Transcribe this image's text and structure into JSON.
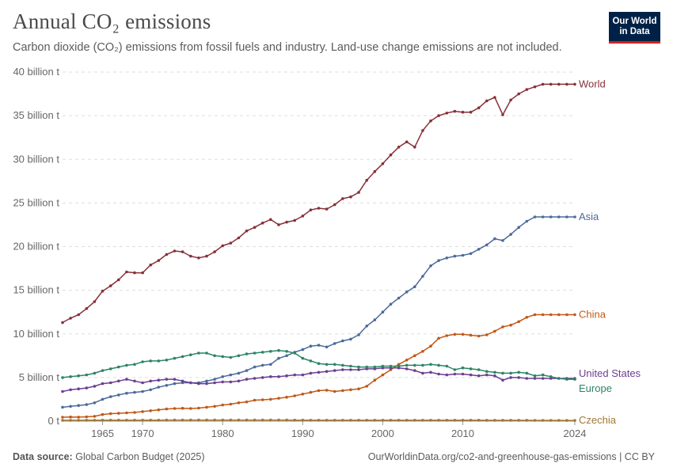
{
  "header": {
    "title": "Annual CO₂ emissions",
    "subtitle": "Carbon dioxide (CO₂) emissions from fossil fuels and industry. Land-use change emissions are not included.",
    "logo_line1": "Our World",
    "logo_line2": "in Data"
  },
  "footer": {
    "source_label": "Data source:",
    "source_text": "Global Carbon Budget (2025)",
    "url_text": "OurWorldinData.org/co2-and-greenhouse-gas-emissions | CC BY"
  },
  "chart_data": {
    "type": "line",
    "title": "Annual CO₂ emissions",
    "xlabel": "",
    "ylabel": "",
    "xlim": [
      1960,
      2024
    ],
    "ylim": [
      0,
      40
    ],
    "y_unit": "billion t",
    "x_ticks": [
      {
        "value": 1965,
        "label": "1965"
      },
      {
        "value": 1970,
        "label": "1970"
      },
      {
        "value": 1980,
        "label": "1980"
      },
      {
        "value": 1990,
        "label": "1990"
      },
      {
        "value": 2000,
        "label": "2000"
      },
      {
        "value": 2010,
        "label": "2010"
      },
      {
        "value": 2024,
        "label": "2024"
      }
    ],
    "y_ticks": [
      {
        "value": 0,
        "label": "0 t"
      },
      {
        "value": 5,
        "label": "5 billion t"
      },
      {
        "value": 10,
        "label": "10 billion t"
      },
      {
        "value": 15,
        "label": "15 billion t"
      },
      {
        "value": 20,
        "label": "20 billion t"
      },
      {
        "value": 25,
        "label": "25 billion t"
      },
      {
        "value": 30,
        "label": "30 billion t"
      },
      {
        "value": 35,
        "label": "35 billion t"
      },
      {
        "value": 40,
        "label": "40 billion t"
      }
    ],
    "grid": "horizontal-dashed",
    "legend": "line-end labels",
    "colors": {
      "World": "#883039",
      "Asia": "#4c6a9c",
      "China": "#c05917",
      "United States": "#6d3e91",
      "Europe": "#2c8465",
      "Czechia": "#a2782f"
    },
    "x": [
      1960,
      1961,
      1962,
      1963,
      1964,
      1965,
      1966,
      1967,
      1968,
      1969,
      1970,
      1971,
      1972,
      1973,
      1974,
      1975,
      1976,
      1977,
      1978,
      1979,
      1980,
      1981,
      1982,
      1983,
      1984,
      1985,
      1986,
      1987,
      1988,
      1989,
      1990,
      1991,
      1992,
      1993,
      1994,
      1995,
      1996,
      1997,
      1998,
      1999,
      2000,
      2001,
      2002,
      2003,
      2004,
      2005,
      2006,
      2007,
      2008,
      2009,
      2010,
      2011,
      2012,
      2013,
      2014,
      2015,
      2016,
      2017,
      2018,
      2019,
      2020,
      2021,
      2022,
      2023,
      2024
    ],
    "series": [
      {
        "name": "World",
        "values": [
          11.3,
          11.8,
          12.2,
          12.9,
          13.7,
          14.9,
          15.5,
          16.2,
          17.1,
          17.0,
          17.0,
          17.9,
          18.4,
          19.1,
          19.5,
          19.4,
          18.9,
          18.7,
          18.9,
          19.4,
          20.1,
          20.4,
          21.0,
          21.8,
          22.2,
          22.7,
          23.1,
          22.5,
          22.8,
          23.0,
          23.5,
          24.2,
          24.4,
          24.3,
          24.8,
          25.5,
          25.7,
          26.2,
          27.6,
          28.6,
          29.5,
          30.5,
          31.4,
          32.0,
          31.4,
          33.3,
          34.4,
          35.0,
          35.3,
          35.5,
          35.4,
          35.4,
          35.9,
          36.7,
          37.1,
          35.1,
          36.8,
          37.5,
          38.0,
          38.3,
          38.6,
          38.6,
          38.6,
          38.6,
          38.6
        ]
      },
      {
        "name": "Asia",
        "values": [
          1.6,
          1.7,
          1.8,
          1.9,
          2.1,
          2.5,
          2.8,
          3.0,
          3.2,
          3.3,
          3.4,
          3.6,
          3.9,
          4.1,
          4.3,
          4.4,
          4.4,
          4.4,
          4.6,
          4.8,
          5.1,
          5.3,
          5.5,
          5.8,
          6.2,
          6.4,
          6.5,
          7.2,
          7.5,
          7.9,
          8.2,
          8.6,
          8.7,
          8.5,
          8.9,
          9.2,
          9.4,
          9.9,
          10.9,
          11.6,
          12.5,
          13.4,
          14.1,
          14.8,
          15.4,
          16.6,
          17.8,
          18.4,
          18.7,
          18.9,
          19.0,
          19.2,
          19.7,
          20.2,
          20.9,
          20.7,
          21.4,
          22.2,
          22.9,
          23.4,
          23.4,
          23.4,
          23.4,
          23.4,
          23.4
        ]
      },
      {
        "name": "China",
        "values": [
          0.45,
          0.48,
          0.46,
          0.5,
          0.55,
          0.76,
          0.86,
          0.9,
          0.95,
          1.0,
          1.1,
          1.2,
          1.3,
          1.4,
          1.45,
          1.48,
          1.45,
          1.5,
          1.6,
          1.7,
          1.85,
          1.95,
          2.1,
          2.2,
          2.4,
          2.45,
          2.5,
          2.62,
          2.75,
          2.9,
          3.1,
          3.3,
          3.5,
          3.55,
          3.4,
          3.5,
          3.6,
          3.7,
          4.0,
          4.7,
          5.3,
          5.9,
          6.5,
          7.0,
          7.5,
          8.0,
          8.6,
          9.5,
          9.8,
          9.95,
          9.95,
          9.85,
          9.75,
          9.9,
          10.3,
          10.8,
          11.0,
          11.4,
          11.9,
          12.2,
          12.2,
          12.2,
          12.2,
          12.2,
          12.2
        ]
      },
      {
        "name": "United States",
        "values": [
          3.4,
          3.6,
          3.7,
          3.8,
          4.0,
          4.3,
          4.4,
          4.6,
          4.8,
          4.6,
          4.4,
          4.6,
          4.7,
          4.8,
          4.8,
          4.6,
          4.4,
          4.3,
          4.3,
          4.4,
          4.5,
          4.5,
          4.6,
          4.8,
          4.9,
          5.0,
          5.1,
          5.1,
          5.2,
          5.3,
          5.3,
          5.5,
          5.6,
          5.7,
          5.8,
          5.9,
          5.9,
          5.9,
          6.0,
          6.0,
          6.1,
          6.1,
          6.1,
          6.0,
          5.8,
          5.5,
          5.6,
          5.4,
          5.3,
          5.4,
          5.4,
          5.3,
          5.2,
          5.3,
          5.2,
          4.7,
          5.0,
          5.0,
          4.9,
          4.9,
          4.9,
          4.9,
          4.9,
          4.9,
          4.9
        ]
      },
      {
        "name": "Europe",
        "values": [
          5.0,
          5.1,
          5.2,
          5.3,
          5.5,
          5.8,
          6.0,
          6.2,
          6.4,
          6.5,
          6.8,
          6.9,
          6.9,
          7.0,
          7.2,
          7.4,
          7.6,
          7.8,
          7.8,
          7.5,
          7.4,
          7.3,
          7.5,
          7.7,
          7.8,
          7.9,
          8.0,
          8.1,
          8.0,
          7.8,
          7.2,
          6.9,
          6.6,
          6.5,
          6.5,
          6.4,
          6.3,
          6.2,
          6.2,
          6.2,
          6.3,
          6.3,
          6.3,
          6.4,
          6.4,
          6.4,
          6.5,
          6.4,
          6.3,
          5.9,
          6.1,
          6.0,
          5.9,
          5.7,
          5.6,
          5.5,
          5.5,
          5.6,
          5.5,
          5.2,
          5.3,
          5.1,
          4.9,
          4.8,
          4.8
        ]
      },
      {
        "name": "Czechia",
        "values": [
          0.1,
          0.1,
          0.1,
          0.11,
          0.11,
          0.12,
          0.12,
          0.12,
          0.12,
          0.12,
          0.12,
          0.12,
          0.12,
          0.13,
          0.13,
          0.13,
          0.13,
          0.13,
          0.13,
          0.13,
          0.13,
          0.13,
          0.13,
          0.13,
          0.13,
          0.13,
          0.13,
          0.13,
          0.13,
          0.12,
          0.12,
          0.11,
          0.11,
          0.11,
          0.11,
          0.11,
          0.11,
          0.11,
          0.11,
          0.11,
          0.11,
          0.11,
          0.11,
          0.11,
          0.11,
          0.11,
          0.11,
          0.11,
          0.11,
          0.11,
          0.11,
          0.11,
          0.11,
          0.1,
          0.1,
          0.1,
          0.1,
          0.1,
          0.1,
          0.09,
          0.09,
          0.09,
          0.09,
          0.08,
          0.08
        ]
      }
    ]
  }
}
